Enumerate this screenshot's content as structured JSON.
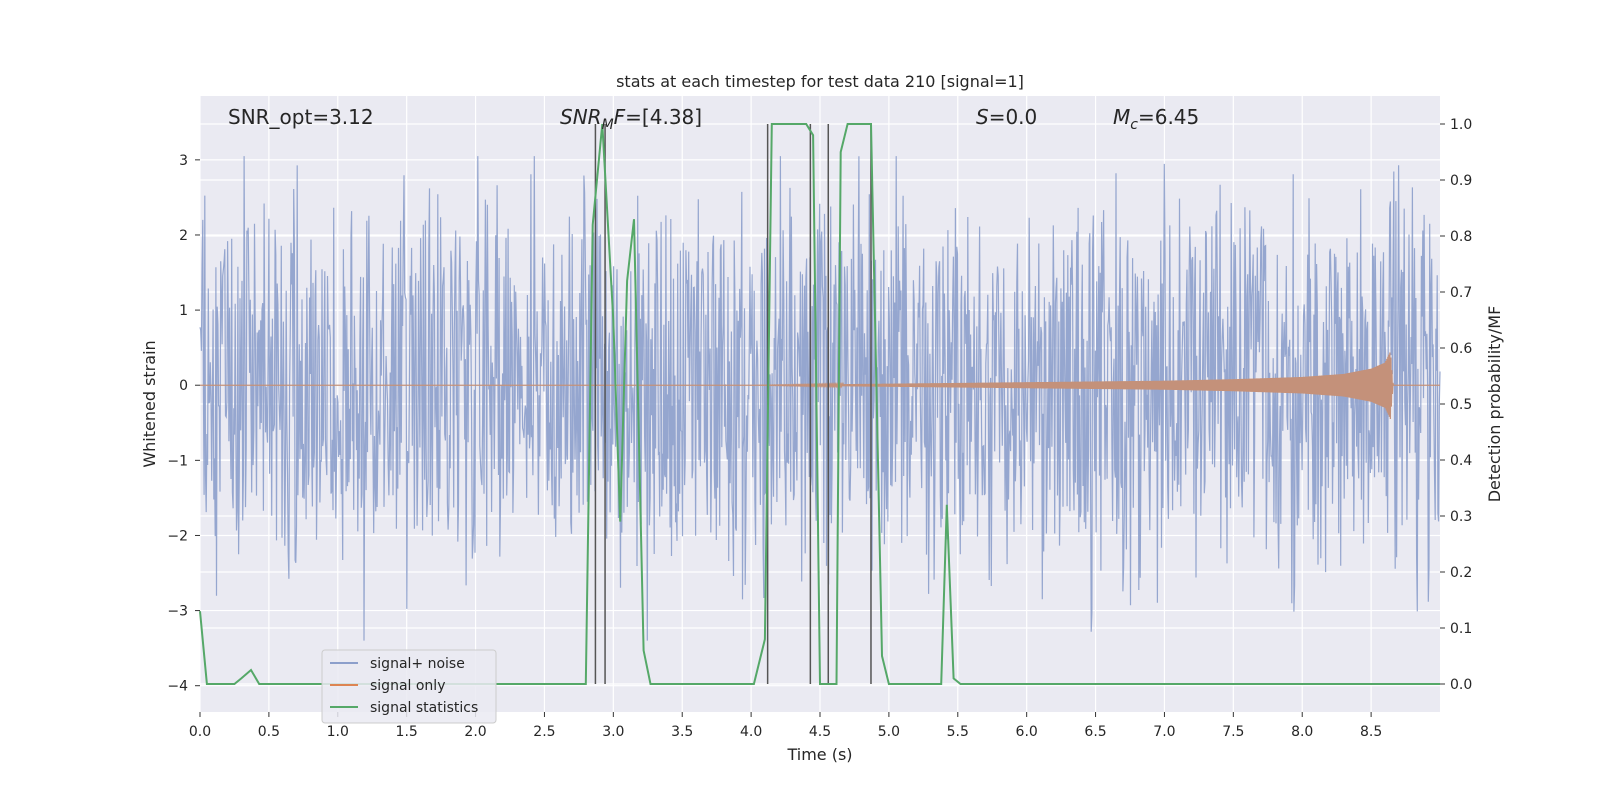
{
  "chart_data": {
    "type": "line",
    "title": "stats at each timestep for test data 210 [signal=1]",
    "xlabel": "Time (s)",
    "ylabel_left": "Whitened strain",
    "ylabel_right": "Detection probability/MF",
    "xlim": [
      0.0,
      9.0
    ],
    "ylim_left": [
      -4.35,
      3.85
    ],
    "ylim_right": [
      -0.05,
      1.05
    ],
    "xticks": [
      "0.0",
      "0.5",
      "1.0",
      "1.5",
      "2.0",
      "2.5",
      "3.0",
      "3.5",
      "4.0",
      "4.5",
      "5.0",
      "5.5",
      "6.0",
      "6.5",
      "7.0",
      "7.5",
      "8.0",
      "8.5"
    ],
    "yticks_left": [
      "3",
      "2",
      "1",
      "0",
      "−1",
      "−2",
      "−3",
      "−4"
    ],
    "yticks_right": [
      "1.0",
      "0.9",
      "0.8",
      "0.7",
      "0.6",
      "0.5",
      "0.4",
      "0.3",
      "0.2",
      "0.1",
      "0.0"
    ],
    "grid": true,
    "legend_position": "lower-left",
    "annotations": {
      "snr_opt": "SNR_opt=3.12",
      "snr_mf": "SNR_MF=[4.38]",
      "s": "S=0.0",
      "mc": "M_c=6.45"
    },
    "series": [
      {
        "name": "signal+ noise",
        "color": "#8c9fcb",
        "description_values": "whitened noise spanning roughly -2 to +2 with spikes to about +3 and -3.4"
      },
      {
        "name": "signal only",
        "color": "#dd8452",
        "x": [
          0.0,
          4.0,
          5.0,
          6.0,
          7.0,
          7.5,
          8.0,
          8.3,
          8.5,
          8.6,
          8.64,
          8.66,
          9.0
        ],
        "amplitude": [
          0.0,
          0.0,
          0.02,
          0.04,
          0.06,
          0.08,
          0.11,
          0.15,
          0.22,
          0.3,
          0.45,
          0.0,
          0.0
        ]
      },
      {
        "name": "signal statistics",
        "color": "#55a868",
        "x": [
          0.0,
          0.05,
          0.1,
          0.25,
          0.3,
          0.37,
          0.43,
          0.5,
          2.5,
          2.8,
          2.85,
          2.92,
          3.0,
          3.05,
          3.1,
          3.15,
          3.22,
          3.27,
          3.33,
          3.4,
          4.02,
          4.1,
          4.15,
          4.2,
          4.4,
          4.45,
          4.5,
          4.55,
          4.62,
          4.65,
          4.7,
          4.8,
          4.87,
          4.95,
          5.0,
          5.1,
          5.3,
          5.38,
          5.42,
          5.47,
          5.52,
          5.58,
          5.7,
          5.8,
          5.9,
          6.2,
          9.0
        ],
        "values": [
          0.13,
          0.0,
          0.0,
          0.0,
          0.01,
          0.025,
          0.0,
          0.0,
          0.0,
          0.0,
          0.82,
          1.0,
          0.65,
          0.29,
          0.72,
          0.83,
          0.06,
          0.0,
          0.0,
          0.0,
          0.0,
          0.08,
          1.0,
          1.0,
          1.0,
          0.98,
          0.0,
          0.0,
          0.0,
          0.95,
          1.0,
          1.0,
          1.0,
          0.05,
          0.0,
          0.0,
          0.0,
          0.0,
          0.32,
          0.01,
          0.0,
          0.0,
          0.0,
          0.0,
          0.0,
          0.0,
          0.0
        ]
      }
    ],
    "vertical_lines_x": [
      2.87,
      2.94,
      4.12,
      4.43,
      4.56,
      4.87
    ]
  }
}
